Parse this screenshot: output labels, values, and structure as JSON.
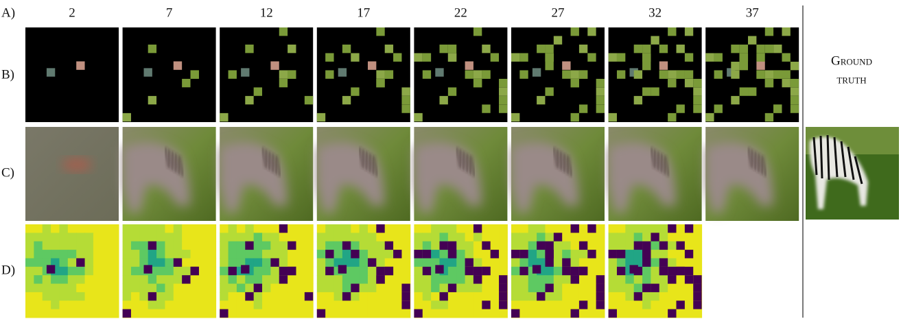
{
  "row_labels": [
    "A)",
    "B)",
    "C)",
    "D)"
  ],
  "columns": [
    2,
    7,
    12,
    17,
    22,
    27,
    32,
    37
  ],
  "ground_truth": [
    "Ground",
    "truth"
  ]
}
